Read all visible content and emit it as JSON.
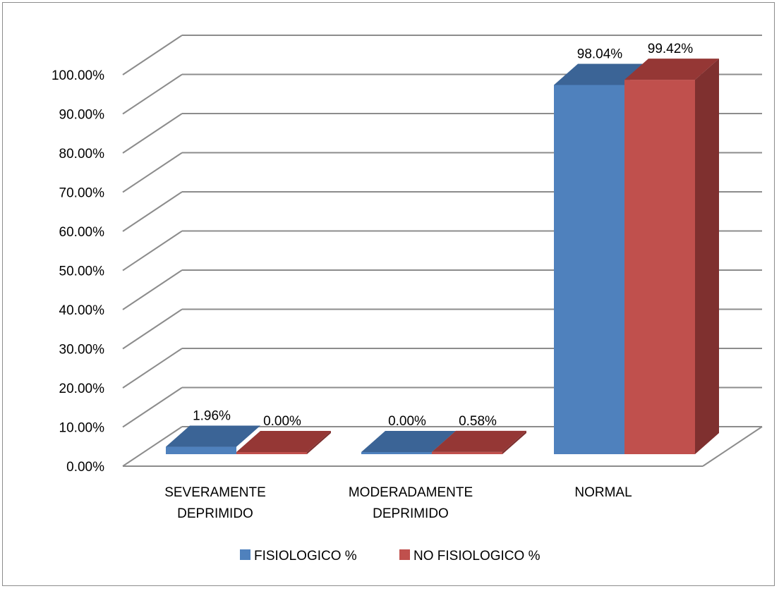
{
  "chart_data": {
    "type": "bar",
    "style": "3d-clustered-column",
    "categories": [
      [
        "SEVERAMENTE",
        "DEPRIMIDO"
      ],
      [
        "MODERADAMENTE",
        "DEPRIMIDO"
      ],
      [
        "NORMAL"
      ]
    ],
    "series": [
      {
        "name": "FISIOLOGICO %",
        "values": [
          1.96,
          0.0,
          98.04
        ],
        "labels": [
          "1.96%",
          "0.00%",
          "98.04%"
        ],
        "color": "#4f81bd",
        "top_color": "#3b6496",
        "side_color": "#385d8a"
      },
      {
        "name": "NO FISIOLOGICO %",
        "values": [
          0.0,
          0.58,
          99.42
        ],
        "labels": [
          "0.00%",
          "0.58%",
          "99.42%"
        ],
        "color": "#c0504d",
        "top_color": "#953735",
        "side_color": "#7f302f"
      }
    ],
    "yticks": [
      "0.00%",
      "10.00%",
      "20.00%",
      "30.00%",
      "40.00%",
      "50.00%",
      "60.00%",
      "70.00%",
      "80.00%",
      "90.00%",
      "100.00%"
    ],
    "ylim": [
      0,
      100
    ],
    "grid": true,
    "legend": "bottom",
    "gridline_color": "#8c8c8c"
  }
}
